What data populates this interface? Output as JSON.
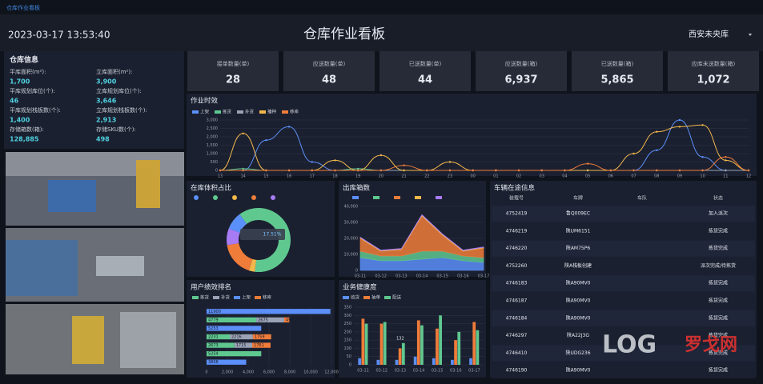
{
  "header": {
    "top_label": "仓库作业看板",
    "datetime": "2023-03-17 13:53:40",
    "title": "仓库作业看板",
    "warehouse": "西安未央库"
  },
  "info": {
    "title": "仓库信息",
    "items": [
      {
        "label": "平库面积(m²):",
        "value": "1,700"
      },
      {
        "label": "立库面积(m²):",
        "value": "3,900"
      },
      {
        "label": "平库规划库位(个):",
        "value": "46"
      },
      {
        "label": "立库规划库位(个):",
        "value": "3,646"
      },
      {
        "label": "平库规划栈板数(个):",
        "value": "1,400"
      },
      {
        "label": "立库规划栈板数(个):",
        "value": "2,913"
      },
      {
        "label": "存储箱数(箱):",
        "value": "128,885"
      },
      {
        "label": "存储SKU数(个):",
        "value": "498"
      }
    ]
  },
  "kpis": [
    {
      "label": "接单数量(单)",
      "value": "28"
    },
    {
      "label": "应送数量(单)",
      "value": "48"
    },
    {
      "label": "已送数量(单)",
      "value": "44"
    },
    {
      "label": "应送数量(箱)",
      "value": "6,937"
    },
    {
      "label": "已送数量(箱)",
      "value": "5,865"
    },
    {
      "label": "应库未送数量(箱)",
      "value": "1,072"
    }
  ],
  "chart_data": [
    {
      "type": "line",
      "title": "作业时效",
      "categories": [
        "13",
        "14",
        "15",
        "16",
        "17",
        "18",
        "19",
        "20",
        "21",
        "22",
        "23",
        "00",
        "01",
        "02",
        "03",
        "04",
        "05",
        "06",
        "07",
        "08",
        "09",
        "10",
        "11",
        "12"
      ],
      "series": [
        {
          "name": "上架",
          "color": "#5b8ff9",
          "values": [
            0,
            0,
            1800,
            2600,
            500,
            0,
            0,
            0,
            0,
            0,
            0,
            0,
            0,
            0,
            0,
            0,
            0,
            0,
            0,
            1200,
            3000,
            800,
            0,
            0
          ]
        },
        {
          "name": "拣货",
          "color": "#5fc88f",
          "values": [
            0,
            100,
            0,
            0,
            0,
            0,
            100,
            0,
            0,
            0,
            0,
            0,
            0,
            0,
            0,
            0,
            0,
            0,
            0,
            0,
            0,
            0,
            0,
            0
          ]
        },
        {
          "name": "补货",
          "color": "#9aa3b5",
          "values": [
            0,
            0,
            0,
            0,
            0,
            0,
            0,
            0,
            0,
            0,
            0,
            0,
            0,
            0,
            0,
            0,
            0,
            0,
            0,
            0,
            0,
            0,
            0,
            0
          ]
        },
        {
          "name": "播种",
          "color": "#f2b84b",
          "values": [
            0,
            2200,
            0,
            0,
            0,
            600,
            0,
            900,
            0,
            0,
            500,
            0,
            0,
            0,
            0,
            0,
            0,
            0,
            1000,
            2300,
            2600,
            2700,
            600,
            0
          ]
        },
        {
          "name": "移库",
          "color": "#f07c3a",
          "values": [
            0,
            0,
            0,
            0,
            0,
            0,
            0,
            0,
            300,
            0,
            0,
            0,
            0,
            0,
            0,
            0,
            400,
            0,
            0,
            0,
            0,
            0,
            800,
            0
          ]
        }
      ],
      "ylim": [
        0,
        3000
      ],
      "yticks": [
        0,
        500,
        {
          "value": 1000,
          "label": "1,000"
        },
        {
          "value": 1500,
          "label": "1,500"
        },
        {
          "value": 2000,
          "label": "2,000"
        },
        {
          "value": 2500,
          "label": "2,500"
        },
        {
          "value": 3000,
          "label": "3,000"
        }
      ],
      "grid": true
    },
    {
      "type": "pie",
      "title": "在库体积占比",
      "categories": [
        null,
        null,
        null,
        null,
        null
      ],
      "colors": [
        "#5b8ff9",
        "#5fc88f",
        "#f2b84b",
        "#f07c3a",
        "#a77bf3"
      ],
      "values": [
        9,
        62,
        3,
        17.51,
        8.49
      ],
      "tooltip": "17.51%"
    },
    {
      "type": "area",
      "title": "出库箱数",
      "categories": [
        "03-11",
        "03-12",
        "03-13",
        "03-14",
        "03-15",
        "03-16",
        "03-17"
      ],
      "series": [
        {
          "color": "#5b8ff9",
          "values": [
            8000,
            6000,
            6000,
            7000,
            8000,
            6000,
            5000
          ]
        },
        {
          "color": "#5fc88f",
          "values": [
            4000,
            3000,
            3000,
            5000,
            4000,
            3000,
            3000
          ]
        },
        {
          "color": "#f07c3a",
          "values": [
            8000,
            3000,
            4000,
            22000,
            10000,
            3000,
            6000
          ]
        },
        {
          "color": "#f2b84b",
          "values": [
            500,
            400,
            400,
            500,
            500,
            400,
            400
          ]
        },
        {
          "color": "#a77bf3",
          "values": [
            300,
            300,
            300,
            400,
            300,
            300,
            300
          ]
        }
      ],
      "ylim": [
        0,
        40000
      ],
      "yticks": [
        0,
        {
          "value": 10000,
          "label": "10,000"
        },
        {
          "value": 20000,
          "label": "20,000"
        },
        {
          "value": 30000,
          "label": "30,000"
        },
        {
          "value": 40000,
          "label": "40,000"
        }
      ],
      "grid": true
    },
    {
      "type": "hbar",
      "title": "用户绩效排名",
      "categories": [
        null,
        null,
        null,
        null,
        null,
        null,
        null
      ],
      "series": [
        {
          "name": "拣货",
          "color": "#5fc88f",
          "values": [
            null,
            4779,
            null,
            2231,
            2673,
            5254,
            null
          ]
        },
        {
          "name": "补货",
          "color": "#9aa3b5",
          "values": [
            null,
            2675,
            null,
            2216,
            1715,
            null,
            null
          ]
        },
        {
          "name": "上架",
          "color": "#5b8ff9",
          "values": [
            11900,
            null,
            5253,
            null,
            null,
            null,
            3808
          ]
        },
        {
          "name": "移库",
          "color": "#f07c3a",
          "values": [
            null,
            498,
            null,
            1759,
            1761,
            null,
            null
          ]
        }
      ],
      "xlim": [
        0,
        12000
      ],
      "xticks": [
        0,
        {
          "value": 2000,
          "label": "2,000"
        },
        {
          "value": 4000,
          "label": "4,000"
        },
        {
          "value": 6000,
          "label": "6,000"
        },
        {
          "value": 8000,
          "label": "8,000"
        },
        {
          "value": 10000,
          "label": "10,000"
        },
        {
          "value": 12000,
          "label": "12,000"
        }
      ],
      "grid": true
    },
    {
      "type": "groupbar",
      "title": "业务健康度",
      "categories": [
        "03-11",
        "03-12",
        "03-13",
        "03-14",
        "03-15",
        "03-16",
        "03-17"
      ],
      "series": [
        {
          "name": "收货",
          "color": "#5b8ff9",
          "values": [
            40,
            30,
            30,
            50,
            40,
            30,
            40
          ]
        },
        {
          "name": "抽单",
          "color": "#f07c3a",
          "values": [
            280,
            250,
            100,
            270,
            220,
            150,
            260
          ]
        },
        {
          "name": "配送",
          "color": "#5fc88f",
          "values": [
            250,
            260,
            132,
            240,
            300,
            200,
            210
          ]
        }
      ],
      "ylim": [
        0,
        350
      ],
      "yticks": [
        0,
        50,
        100,
        150,
        200,
        250,
        300,
        350
      ],
      "annotation": "132",
      "grid": true
    }
  ],
  "vehicles": {
    "title": "车辆在途信息",
    "columns": [
      "装载号",
      "车牌",
      "车队",
      "状态"
    ],
    "rows": [
      {
        "id": "4752419",
        "plate": "鲁Q009EC",
        "status": "加入派次"
      },
      {
        "id": "4746219",
        "plate": "陕UM6151",
        "status": "拣货完成"
      },
      {
        "id": "4746220",
        "plate": "陕AM75P6",
        "status": "拣货完成"
      },
      {
        "id": "4752260",
        "plate": "陕A栈板创建",
        "status": "派次完成/待拣货"
      },
      {
        "id": "4746183",
        "plate": "陕A90MV0",
        "status": "拣货完成"
      },
      {
        "id": "4746187",
        "plate": "陕A90MV0",
        "status": "拣货完成"
      },
      {
        "id": "4746184",
        "plate": "陕A90MV0",
        "status": "拣货完成"
      },
      {
        "id": "4746297",
        "plate": "陕A22J3G",
        "status": "拣货完成"
      },
      {
        "id": "4746410",
        "plate": "陕UDG236",
        "status": "拣货完成"
      },
      {
        "id": "4746190",
        "plate": "陕A90MV0",
        "status": "拣货完成"
      }
    ]
  },
  "watermark": {
    "logo": "LOG",
    "name": "罗戈网"
  }
}
